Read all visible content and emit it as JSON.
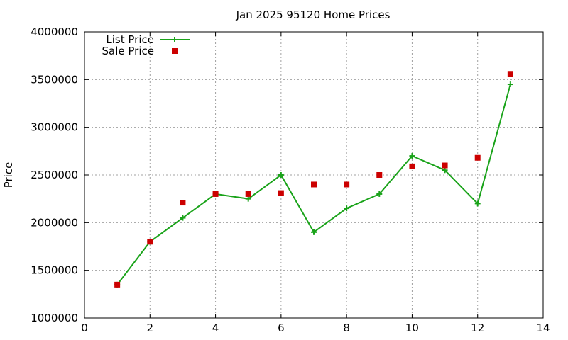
{
  "chart_data": {
    "type": "line",
    "title": "Jan 2025 95120 Home Prices",
    "xlabel": "",
    "ylabel": "Price",
    "xlim": [
      0,
      14
    ],
    "ylim": [
      1000000,
      4000000
    ],
    "xticks": [
      0,
      2,
      4,
      6,
      8,
      10,
      12,
      14
    ],
    "yticks": [
      1000000,
      1500000,
      2000000,
      2500000,
      3000000,
      3500000,
      4000000
    ],
    "grid": true,
    "legend_position": "top-left",
    "series": [
      {
        "name": "List Price",
        "style": "line-plus",
        "color": "#1aa31a",
        "x": [
          1,
          2,
          3,
          4,
          5,
          6,
          7,
          8,
          9,
          10,
          11,
          12,
          13
        ],
        "y": [
          1350000,
          1800000,
          2050000,
          2300000,
          2250000,
          2500000,
          1900000,
          2150000,
          2300000,
          2700000,
          2550000,
          2200000,
          3450000
        ]
      },
      {
        "name": "Sale Price",
        "style": "square-marker",
        "color": "#cc0000",
        "x": [
          1,
          2,
          3,
          4,
          5,
          6,
          7,
          8,
          9,
          10,
          11,
          12,
          13
        ],
        "y": [
          1350000,
          1800000,
          2210000,
          2300000,
          2300000,
          2310000,
          2400000,
          2400000,
          2500000,
          2590000,
          2600000,
          2680000,
          3560000
        ]
      }
    ]
  }
}
